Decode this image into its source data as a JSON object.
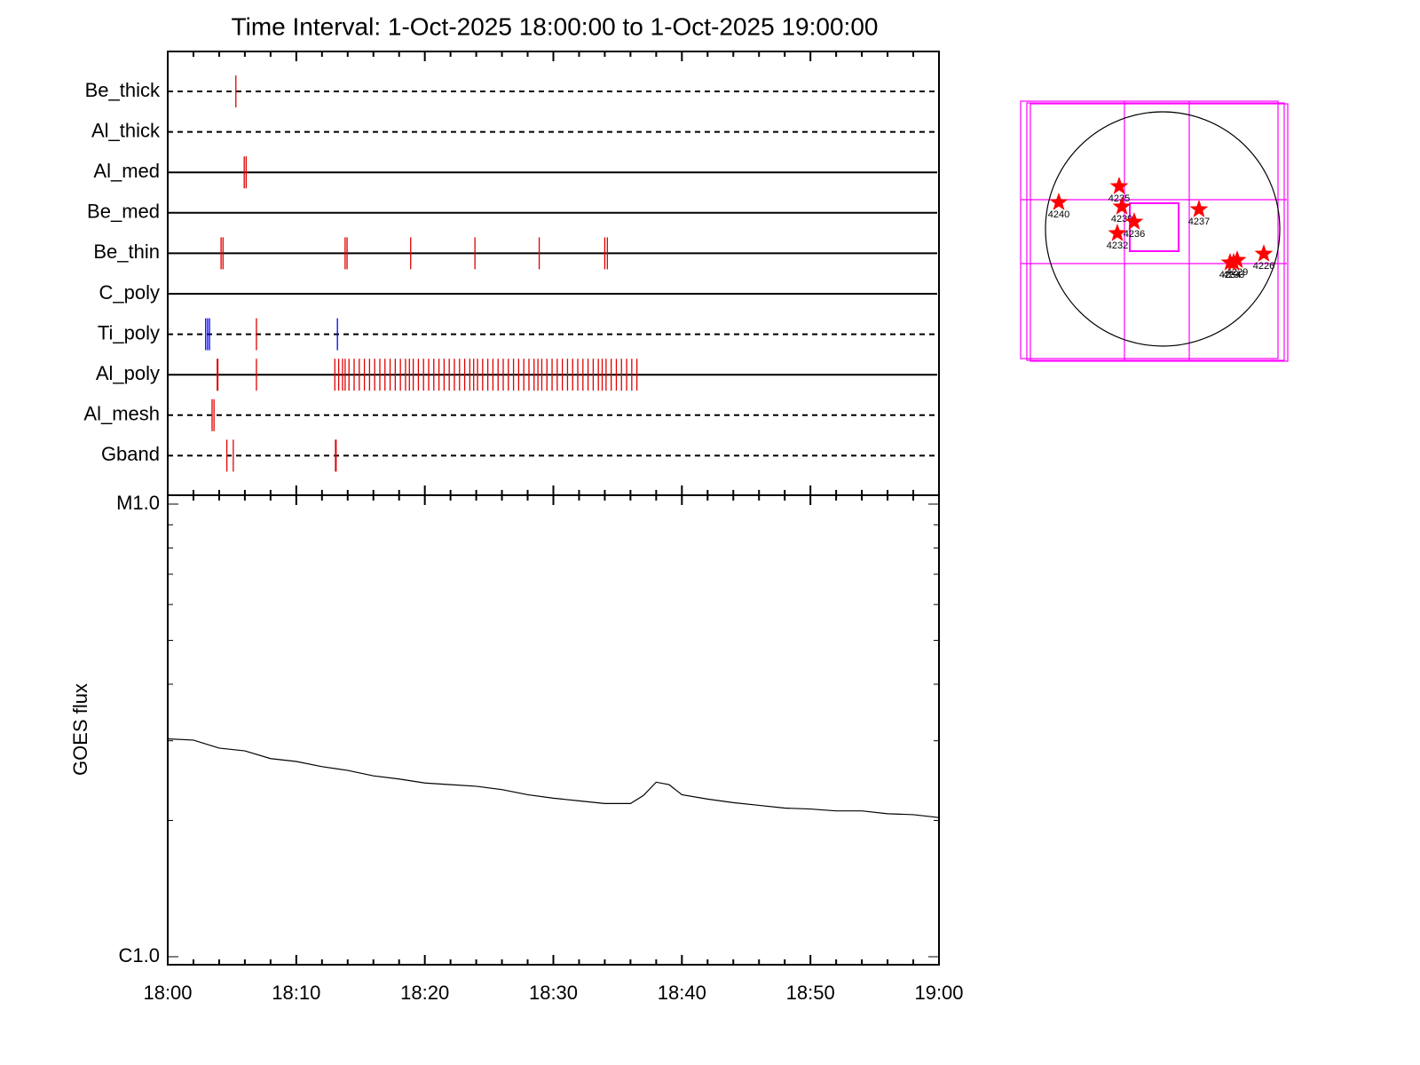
{
  "chart_data": [
    {
      "type": "event",
      "title": "Time Interval:  1-Oct-2025 18:00:00 to  1-Oct-2025 19:00:00",
      "rows": [
        {
          "name": "Be_thick",
          "line": "dashed",
          "events": [
            {
              "color": "#e00000",
              "x": [
                5.3
              ]
            }
          ]
        },
        {
          "name": "Al_thick",
          "line": "dashed",
          "events": []
        },
        {
          "name": "Al_med",
          "line": "solid",
          "events": [
            {
              "color": "#e00000",
              "x": [
                5.95,
                6.1
              ]
            }
          ]
        },
        {
          "name": "Be_med",
          "line": "solid",
          "events": []
        },
        {
          "name": "Be_thin",
          "line": "solid",
          "events": [
            {
              "color": "#e00000",
              "x": [
                4.15,
                4.3,
                13.8,
                13.95,
                18.9,
                23.9,
                28.9,
                34.0,
                34.2
              ]
            }
          ]
        },
        {
          "name": "C_poly",
          "line": "solid",
          "events": []
        },
        {
          "name": "Ti_poly",
          "line": "dashed",
          "events": [
            {
              "color": "#0000ff",
              "x": [
                2.95,
                3.1,
                3.25,
                13.2
              ]
            },
            {
              "color": "#e00000",
              "x": [
                6.9
              ]
            }
          ]
        },
        {
          "name": "Al_poly",
          "line": "solid",
          "events": [
            {
              "color": "#e00000",
              "x": [
                3.85,
                3.9,
                6.9,
                13.0,
                13.3,
                13.6,
                13.8,
                14.1,
                14.5,
                14.9,
                15.3,
                15.7,
                16.1,
                16.5,
                16.9,
                17.3,
                17.7,
                18.1,
                18.5,
                18.8,
                19.1,
                19.5,
                19.9,
                20.3,
                20.7,
                21.1,
                21.5,
                21.9,
                22.3,
                22.7,
                23.1,
                23.5,
                23.8,
                24.1,
                24.5,
                24.9,
                25.3,
                25.7,
                26.1,
                26.5,
                26.9,
                27.3,
                27.7,
                28.1,
                28.5,
                28.8,
                29.1,
                29.5,
                29.9,
                30.3,
                30.7,
                31.1,
                31.5,
                31.9,
                32.3,
                32.7,
                33.1,
                33.5,
                33.8,
                34.1,
                34.5,
                34.9,
                35.3,
                35.7,
                36.1,
                36.5
              ]
            }
          ]
        },
        {
          "name": "Al_mesh",
          "line": "dashed",
          "events": [
            {
              "color": "#e00000",
              "x": [
                3.45,
                3.6
              ]
            }
          ]
        },
        {
          "name": "Gband",
          "line": "dashed",
          "events": [
            {
              "color": "#e00000",
              "x": [
                4.6,
                5.1,
                13.05,
                13.1
              ]
            }
          ]
        }
      ]
    },
    {
      "type": "line",
      "ylabel": "GOES flux",
      "x": [
        0,
        2,
        4,
        6,
        8,
        10,
        12,
        14,
        16,
        18,
        20,
        22,
        24,
        26,
        28,
        30,
        32,
        34,
        36,
        37,
        38,
        39,
        40,
        42,
        44,
        46,
        48,
        50,
        52,
        54,
        56,
        58,
        60
      ],
      "values": [
        3.03e-06,
        3.01e-06,
        2.89e-06,
        2.85e-06,
        2.74e-06,
        2.7e-06,
        2.63e-06,
        2.58e-06,
        2.51e-06,
        2.47e-06,
        2.42e-06,
        2.4e-06,
        2.38e-06,
        2.34e-06,
        2.28e-06,
        2.24e-06,
        2.21e-06,
        2.18e-06,
        2.18e-06,
        2.27e-06,
        2.43e-06,
        2.4e-06,
        2.28e-06,
        2.23e-06,
        2.19e-06,
        2.16e-06,
        2.13e-06,
        2.12e-06,
        2.1e-06,
        2.1e-06,
        2.07e-06,
        2.06e-06,
        2.03e-06
      ],
      "color": "#000000",
      "xlim": [
        0,
        60
      ],
      "xticks": [
        {
          "value": 0,
          "label": "18:00"
        },
        {
          "value": 10,
          "label": "18:10"
        },
        {
          "value": 20,
          "label": "18:20"
        },
        {
          "value": 30,
          "label": "18:30"
        },
        {
          "value": 40,
          "label": "18:40"
        },
        {
          "value": 50,
          "label": "18:50"
        },
        {
          "value": 60,
          "label": "19:00"
        }
      ],
      "minor_xticks": [
        2,
        4,
        6,
        8,
        12,
        14,
        16,
        18,
        22,
        24,
        26,
        28,
        32,
        34,
        36,
        38,
        42,
        44,
        46,
        48,
        52,
        54,
        56,
        58
      ],
      "ylim": [
        1e-06,
        1e-05
      ],
      "log_y": true,
      "yticks": [
        {
          "value": 1e-06,
          "label": "C1.0"
        },
        {
          "value": 1e-05,
          "label": "M1.0"
        }
      ],
      "minor_yticks": [
        2e-06,
        3e-06,
        4e-06,
        5e-06,
        6e-06,
        7e-06,
        8e-06,
        9e-06
      ]
    },
    {
      "type": "scatter",
      "x": [
        -851,
        -356,
        -334,
        -233,
        -371,
        298,
        829,
        611,
        582,
        553
      ],
      "y": [
        218,
        349,
        182,
        58,
        -36,
        160,
        -204,
        -255,
        -276,
        -276
      ],
      "labels": [
        "4240",
        "4235",
        "4239",
        "4236",
        "4232",
        "4237",
        "4226",
        "4229",
        "4233",
        "4234"
      ],
      "color": "#ff0000"
    }
  ]
}
